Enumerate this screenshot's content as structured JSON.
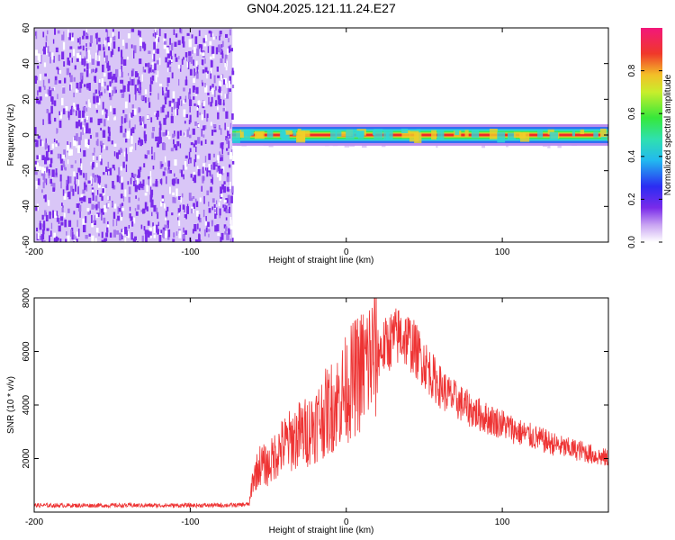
{
  "title": "GN04.2025.121.11.24.E27",
  "colors": {
    "spectro_noise": "#7a2bea",
    "spectro_noise_light": "#d9c6f7",
    "snr_line": "#ee3333",
    "axis": "#000000"
  },
  "chart_data": [
    {
      "type": "heatmap",
      "xlabel": "Height of straight line (km)",
      "ylabel": "Frequency (Hz)",
      "xlim": [
        -200,
        168
      ],
      "ylim": [
        -60,
        60
      ],
      "x_ticks": [
        -200,
        -100,
        0,
        100
      ],
      "y_ticks": [
        -60,
        -40,
        -20,
        0,
        20,
        40,
        60
      ],
      "noise_region_x": [
        -200,
        -73
      ],
      "signal_band": {
        "x_start": -73,
        "x_end": 168,
        "center_hz": 0,
        "halfwidth_hz": 3
      },
      "grid": false,
      "colorbar": {
        "label": "Normalized spectral amplitude",
        "ticks": [
          0.0,
          0.2,
          0.4,
          0.6,
          0.8
        ],
        "tick_labels": [
          "0.0",
          "0.2",
          "0.4",
          "0.6",
          "0.8"
        ],
        "range": [
          0,
          1
        ],
        "colormap": "rainbow (white-violet-blue-cyan-green-yellow-red-magenta)"
      }
    },
    {
      "type": "line",
      "xlabel": "Height of straight line (km)",
      "ylabel": "SNR (10 * v/v)",
      "xlim": [
        -200,
        168
      ],
      "ylim": [
        0,
        8000
      ],
      "x_ticks": [
        -200,
        -100,
        0,
        100
      ],
      "y_ticks": [
        2000,
        4000,
        6000,
        8000
      ],
      "grid": false,
      "series": [
        {
          "x": [
            -200,
            -150,
            -100,
            -70,
            -62,
            -60,
            -55,
            -50,
            -45,
            -40,
            -35,
            -30,
            -25,
            -20,
            -15,
            -10,
            -5,
            0,
            5,
            10,
            15,
            20,
            25,
            30,
            35,
            40,
            45,
            50,
            55,
            60,
            65,
            70,
            75,
            80,
            90,
            100,
            110,
            120,
            130,
            140,
            150,
            160,
            168
          ],
          "y": [
            250,
            250,
            250,
            260,
            300,
            1200,
            1800,
            1700,
            2200,
            2500,
            2700,
            2900,
            3000,
            3300,
            3600,
            3900,
            4200,
            4600,
            5000,
            5300,
            5700,
            6000,
            6200,
            6500,
            6600,
            6400,
            6000,
            5600,
            5100,
            4700,
            4400,
            4200,
            4000,
            3800,
            3500,
            3300,
            3000,
            2800,
            2600,
            2400,
            2300,
            2100,
            2000
          ]
        }
      ]
    }
  ]
}
